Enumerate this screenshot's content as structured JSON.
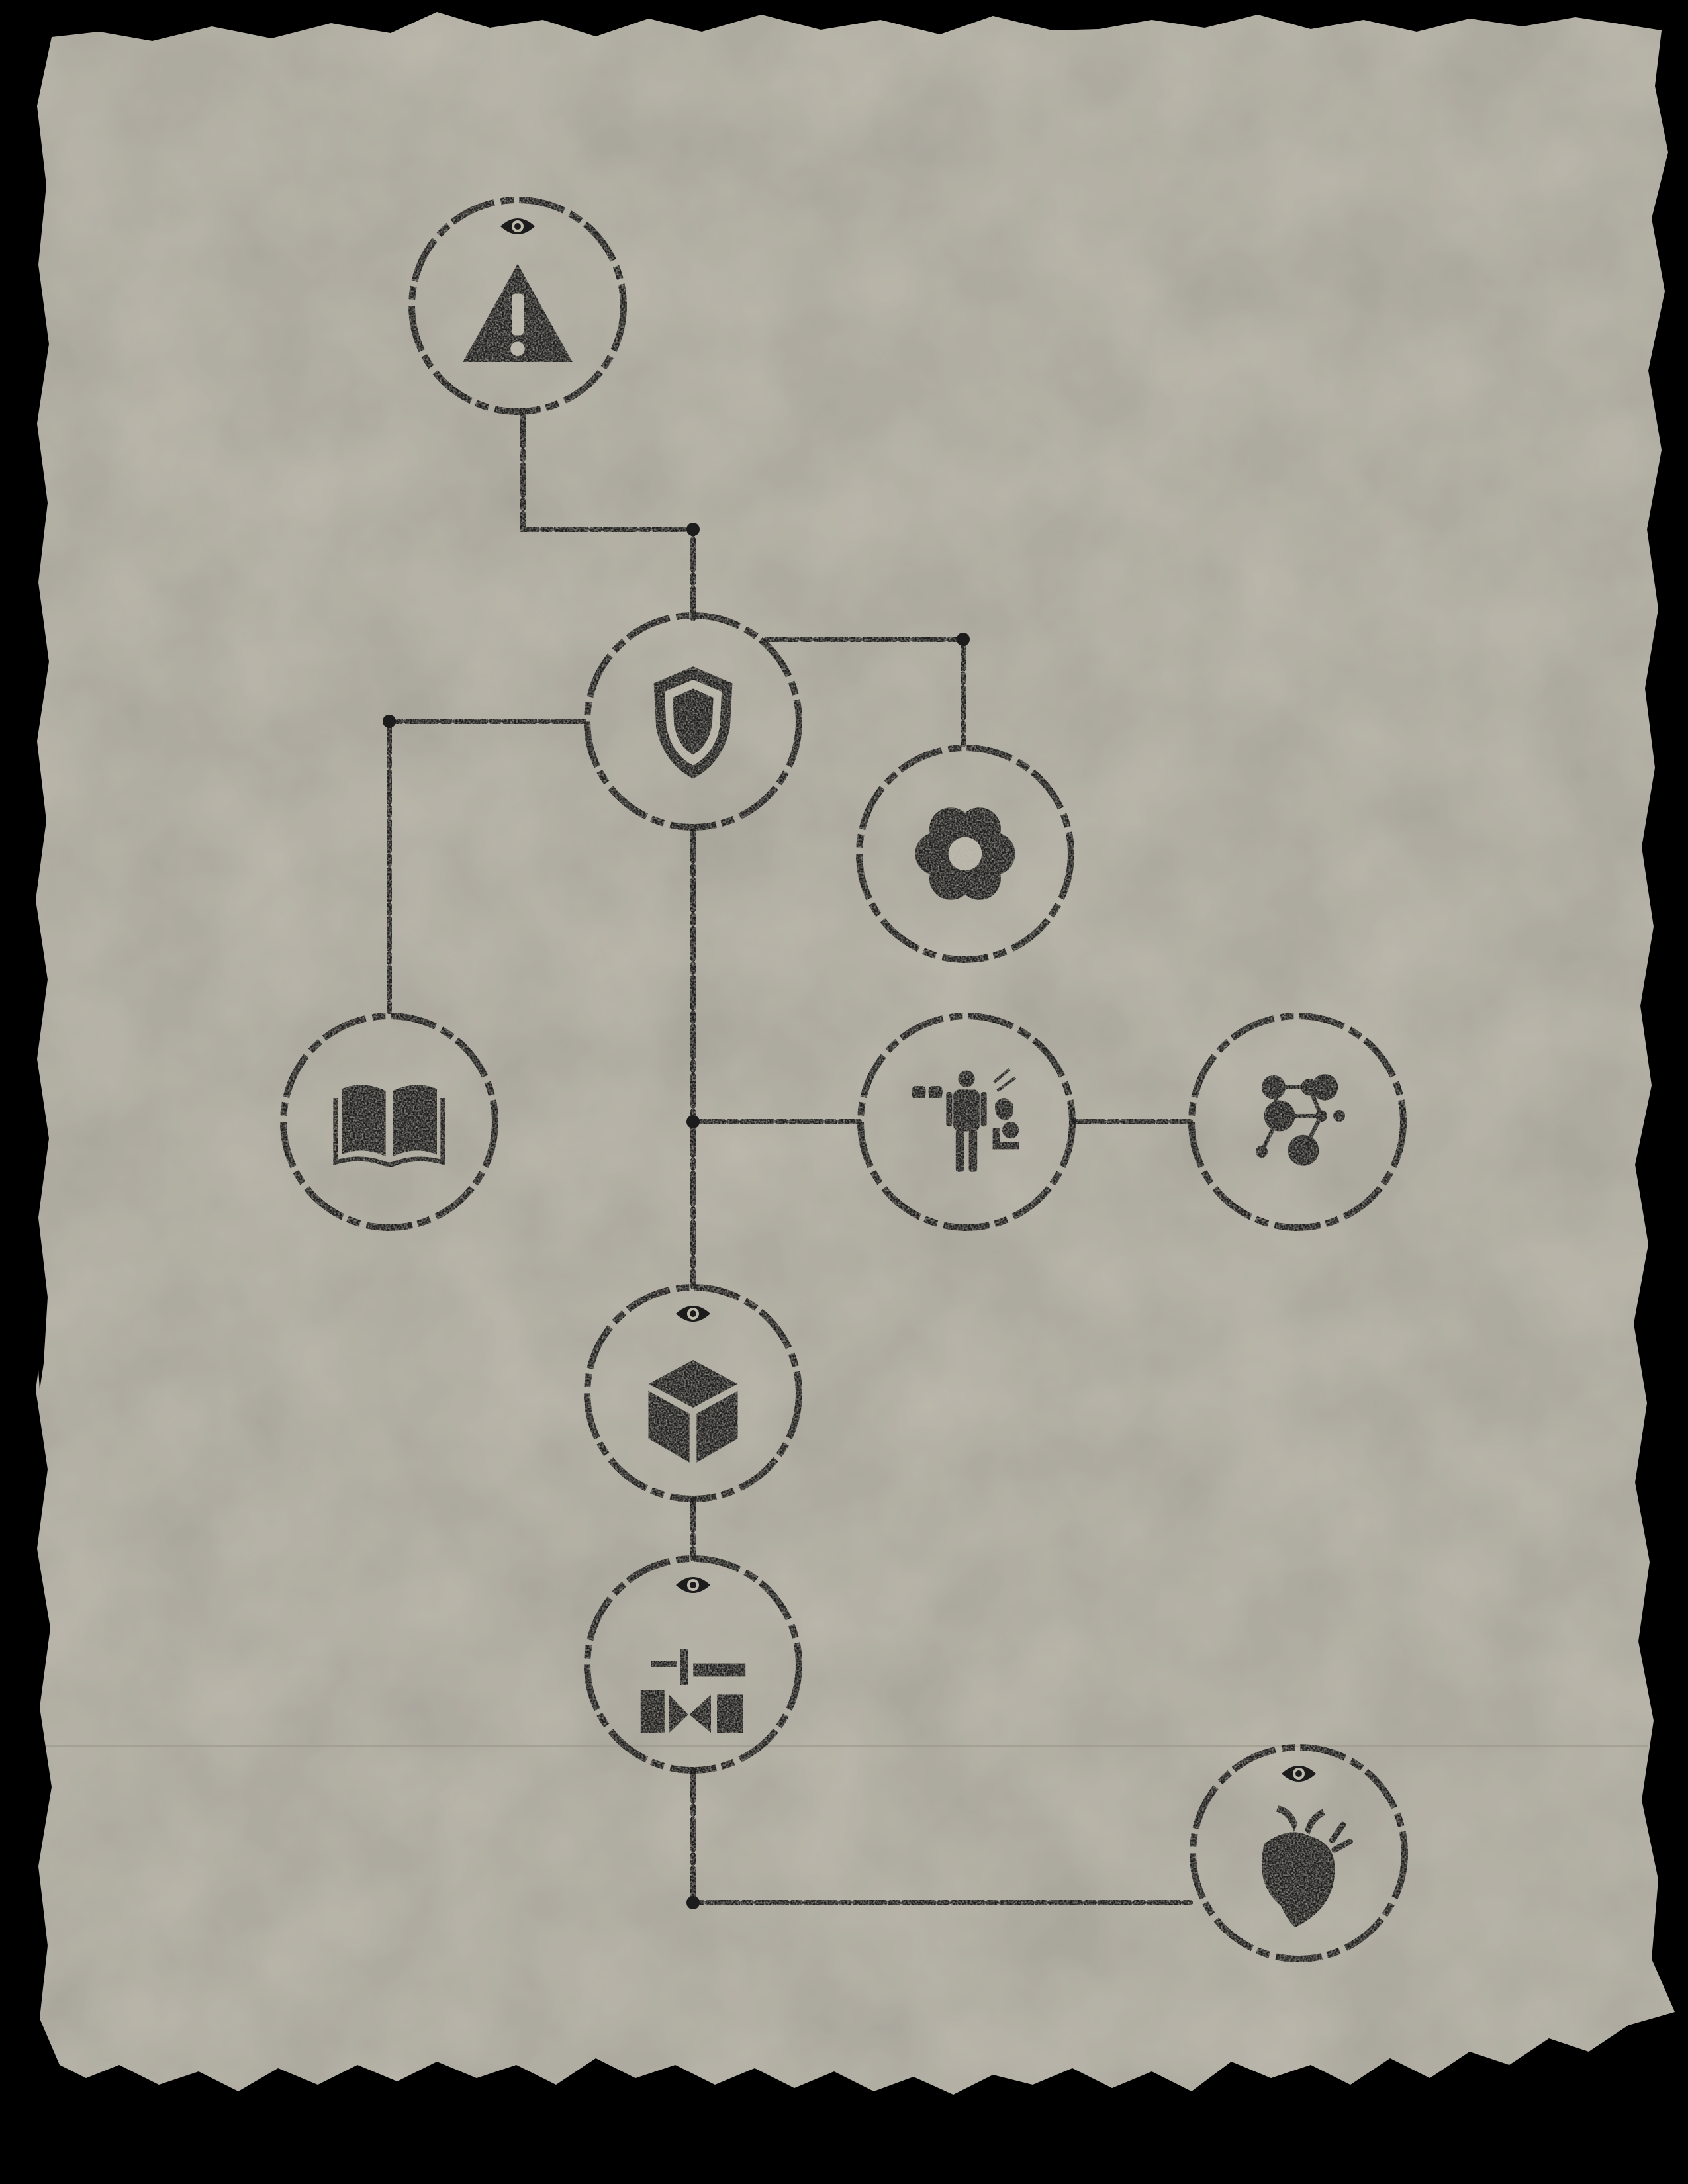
{
  "theme": {
    "background": "#000000",
    "paper": "#bdb9ad",
    "paper_dark": "#a8a497",
    "ink": "#1c1c1c",
    "stain": "#8f8b7c"
  },
  "skill_tree": {
    "nodes": [
      {
        "id": "warning",
        "icon": "warning-triangle-icon",
        "revealed_mark": true
      },
      {
        "id": "shield",
        "icon": "shield-icon",
        "revealed_mark": false
      },
      {
        "id": "flower",
        "icon": "flower-icon",
        "revealed_mark": false
      },
      {
        "id": "book",
        "icon": "open-book-icon",
        "revealed_mark": false
      },
      {
        "id": "anatomy",
        "icon": "human-anatomy-icon",
        "revealed_mark": false
      },
      {
        "id": "network",
        "icon": "people-network-icon",
        "revealed_mark": false
      },
      {
        "id": "cube",
        "icon": "cube-icon",
        "revealed_mark": true
      },
      {
        "id": "tools",
        "icon": "tools-icon",
        "revealed_mark": true
      },
      {
        "id": "heart",
        "icon": "anatomical-heart-icon",
        "revealed_mark": true
      }
    ],
    "connections": [
      [
        "warning",
        "shield"
      ],
      [
        "shield",
        "flower"
      ],
      [
        "shield",
        "book"
      ],
      [
        "shield",
        "cube"
      ],
      [
        "shield",
        "anatomy"
      ],
      [
        "anatomy",
        "network"
      ],
      [
        "cube",
        "tools"
      ],
      [
        "tools",
        "heart"
      ]
    ]
  }
}
